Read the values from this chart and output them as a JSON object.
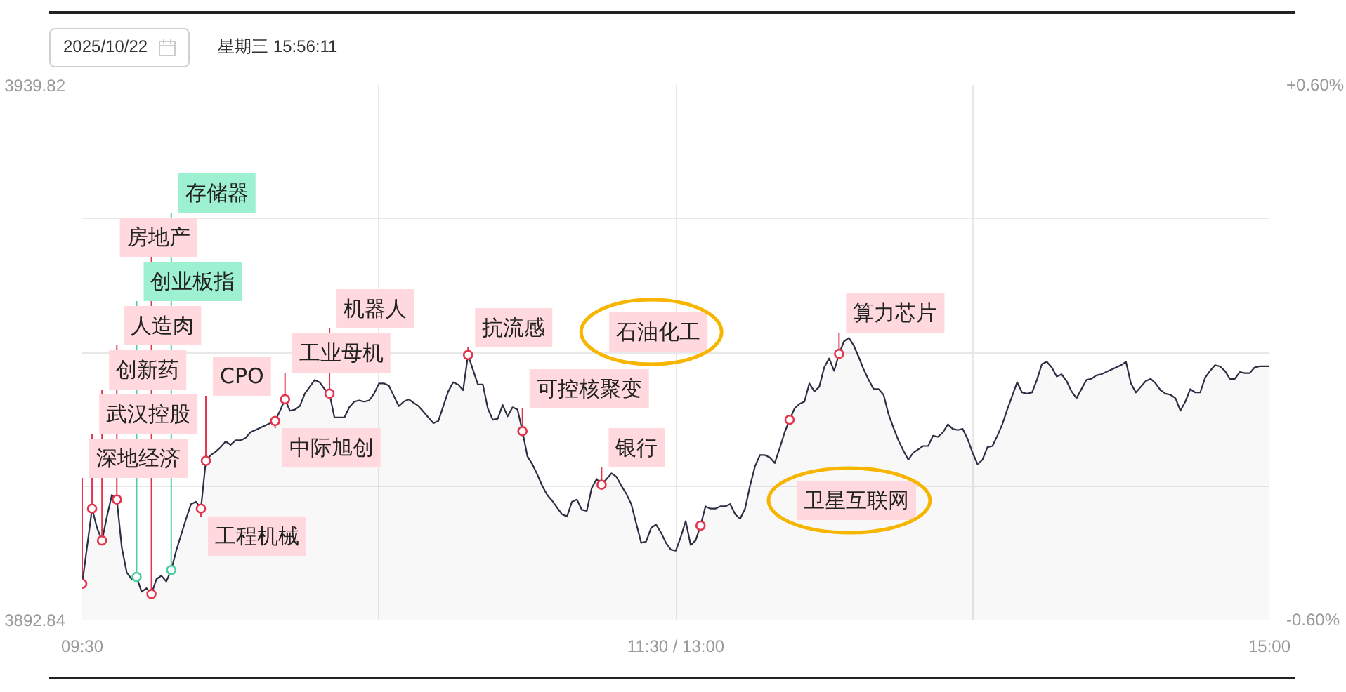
{
  "chart_data": {
    "type": "area",
    "title": "2025/10/22",
    "subtitle": "星期三 15:56:11",
    "categories": [
      "09:30",
      null,
      null,
      null,
      null,
      null,
      null,
      null,
      null,
      null,
      null,
      null,
      null,
      null,
      null,
      null,
      null,
      null,
      null,
      null,
      null,
      null,
      null,
      null,
      null,
      null,
      null,
      null,
      null,
      null,
      null,
      null,
      null,
      null,
      null,
      null,
      null,
      null,
      null,
      null,
      null,
      null,
      null,
      null,
      null,
      null,
      null,
      null,
      null,
      null,
      null,
      null,
      null,
      null,
      null,
      null,
      null,
      null,
      null,
      null,
      null,
      null,
      null,
      null,
      null,
      null,
      null,
      null,
      null,
      null,
      null,
      null,
      null,
      null,
      null,
      null,
      null,
      null,
      null,
      null,
      null,
      null,
      null,
      null,
      null,
      null,
      null,
      null,
      null,
      null,
      null,
      null,
      null,
      null,
      null,
      null,
      null,
      null,
      null,
      null,
      null,
      null,
      null,
      null,
      null,
      null,
      null,
      null,
      null,
      null,
      null,
      null,
      null,
      null,
      null,
      null,
      null,
      null,
      null,
      null,
      "11:30 / 13:00",
      null,
      null,
      null,
      null,
      null,
      null,
      null,
      null,
      null,
      null,
      null,
      null,
      null,
      null,
      null,
      null,
      null,
      null,
      null,
      null,
      null,
      null,
      null,
      null,
      null,
      null,
      null,
      null,
      null,
      null,
      null,
      null,
      null,
      null,
      null,
      null,
      null,
      null,
      null,
      null,
      null,
      null,
      null,
      null,
      null,
      null,
      null,
      null,
      null,
      null,
      null,
      null,
      null,
      null,
      null,
      null,
      null,
      null,
      null,
      null,
      null,
      null,
      null,
      null,
      null,
      null,
      null,
      null,
      null,
      null,
      null,
      null,
      null,
      null,
      null,
      null,
      null,
      null,
      null,
      null,
      null,
      null,
      null,
      null,
      null,
      null,
      null,
      null,
      null,
      null,
      null,
      null,
      null,
      null,
      null,
      null,
      null,
      null,
      null,
      null,
      null,
      null,
      null,
      null,
      null,
      null,
      null,
      null,
      null,
      null,
      null,
      null,
      null,
      null,
      null,
      null,
      null,
      null,
      null,
      "15:00"
    ],
    "ylim": [
      3892.84,
      3939.82
    ],
    "yticks": [
      3892.84,
      {
        "value": 3904.585,
        "label": null
      },
      {
        "value": 3916.33,
        "label": null
      },
      {
        "value": 3928.075,
        "label": null
      },
      3939.82
    ],
    "y2lim": [
      -0.6,
      0.6
    ],
    "y2ticks": [
      {
        "value": -0.6,
        "label": "-0.60%"
      },
      {
        "value": 0.6,
        "label": "+0.60%"
      }
    ],
    "grid": true,
    "series": [
      {
        "color": "#2c2f43",
        "values": [
          3896.0,
          3899.3,
          3902.6,
          3900.9,
          3899.8,
          3901.9,
          3903.8,
          3903.4,
          3899.2,
          3897.0,
          3896.4,
          3896.6,
          3895.3,
          3895.6,
          3895.1,
          3896.4,
          3896.7,
          3896.2,
          3897.2,
          3898.9,
          3900.3,
          3901.7,
          3903.0,
          3903.2,
          3902.6,
          3906.8,
          3907.3,
          3907.6,
          3908.0,
          3908.5,
          3908.2,
          3908.6,
          3908.6,
          3908.8,
          3909.3,
          3909.5,
          3909.7,
          3909.9,
          3910.1,
          3910.3,
          3911.2,
          3912.2,
          3911.2,
          3911.3,
          3911.6,
          3912.7,
          3913.3,
          3913.9,
          3913.7,
          3913.1,
          3912.7,
          3910.6,
          3910.6,
          3910.6,
          3911.5,
          3912.0,
          3912.1,
          3912.0,
          3912.1,
          3912.7,
          3913.6,
          3913.6,
          3913.4,
          3912.5,
          3911.6,
          3912.0,
          3912.2,
          3911.9,
          3911.6,
          3911.1,
          3910.6,
          3910.1,
          3910.3,
          3911.6,
          3912.9,
          3913.7,
          3913.5,
          3913.0,
          3916.1,
          3914.8,
          3913.5,
          3913.5,
          3911.4,
          3910.4,
          3910.5,
          3911.7,
          3910.7,
          3911.5,
          3911.3,
          3909.4,
          3907.2,
          3906.5,
          3905.6,
          3904.6,
          3903.8,
          3903.3,
          3902.7,
          3902.1,
          3901.9,
          3903.2,
          3903.4,
          3902.5,
          3902.4,
          3904.4,
          3905.2,
          3904.7,
          3905.2,
          3905.7,
          3905.4,
          3904.6,
          3903.9,
          3903.0,
          3901.3,
          3899.6,
          3899.7,
          3900.9,
          3901.2,
          3900.5,
          3899.6,
          3899.0,
          3898.9,
          3900.1,
          3901.5,
          3899.4,
          3899.8,
          3901.1,
          3902.8,
          3902.6,
          3902.6,
          3902.8,
          3902.8,
          3903.0,
          3902.1,
          3901.7,
          3902.6,
          3904.6,
          3906.3,
          3907.3,
          3907.3,
          3907.1,
          3906.6,
          3907.9,
          3909.3,
          3910.4,
          3911.4,
          3911.8,
          3912.0,
          3913.6,
          3912.9,
          3913.3,
          3915.0,
          3915.8,
          3914.7,
          3916.2,
          3917.3,
          3917.6,
          3916.9,
          3915.9,
          3914.8,
          3913.9,
          3913.1,
          3913.1,
          3912.6,
          3910.9,
          3909.7,
          3908.6,
          3907.7,
          3906.9,
          3907.5,
          3907.8,
          3908.1,
          3908.1,
          3909.0,
          3908.9,
          3909.3,
          3910.0,
          3909.6,
          3909.5,
          3909.6,
          3908.7,
          3907.5,
          3906.5,
          3906.9,
          3908.0,
          3908.1,
          3909.0,
          3910.0,
          3911.3,
          3912.5,
          3913.7,
          3912.8,
          3912.7,
          3912.8,
          3913.9,
          3915.3,
          3915.5,
          3915.0,
          3914.2,
          3914.4,
          3913.8,
          3912.9,
          3912.3,
          3913.1,
          3913.9,
          3914.0,
          3914.3,
          3914.4,
          3914.6,
          3914.8,
          3915.0,
          3915.2,
          3915.5,
          3913.6,
          3912.8,
          3913.3,
          3913.8,
          3914.0,
          3913.6,
          3913.0,
          3912.7,
          3912.6,
          3912.3,
          3911.2,
          3912.0,
          3913.1,
          3912.8,
          3912.8,
          3914.1,
          3914.7,
          3915.2,
          3915.1,
          3914.7,
          3914.0,
          3914.0,
          3914.6,
          3914.5,
          3914.5,
          3915.0,
          3915.1,
          3915.1,
          3915.1
        ]
      },
      {
        "type": "scatter",
        "marker": "circle",
        "color": "#e5334b",
        "values": [
          3896.0,
          null,
          3902.6,
          null,
          3899.8,
          null,
          null,
          3903.4,
          null,
          null,
          null,
          null,
          null,
          null,
          3895.1,
          null,
          null,
          null,
          null,
          null,
          null,
          null,
          null,
          null,
          3902.6,
          3906.8,
          null,
          null,
          null,
          null,
          null,
          null,
          null,
          null,
          null,
          null,
          null,
          null,
          null,
          3910.3,
          null,
          3912.2,
          null,
          null,
          null,
          null,
          null,
          null,
          null,
          null,
          3912.7,
          null,
          null,
          null,
          null,
          null,
          null,
          null,
          null,
          null,
          null,
          null,
          null,
          null,
          null,
          null,
          null,
          null,
          null,
          null,
          null,
          null,
          null,
          null,
          null,
          null,
          null,
          null,
          3916.1,
          null,
          null,
          null,
          null,
          null,
          null,
          null,
          null,
          null,
          null,
          3909.4,
          null,
          null,
          null,
          null,
          null,
          null,
          null,
          null,
          null,
          null,
          null,
          null,
          null,
          null,
          null,
          3904.7,
          null,
          null,
          null,
          null,
          null,
          null,
          null,
          null,
          null,
          null,
          null,
          null,
          null,
          null,
          null,
          null,
          null,
          null,
          null,
          3901.1,
          null,
          null,
          null,
          null,
          null,
          null,
          null,
          null,
          null,
          null,
          null,
          null,
          null,
          null,
          null,
          null,
          null,
          3910.4,
          null,
          null,
          null,
          null,
          null,
          null,
          null,
          null,
          null,
          3916.2,
          null,
          null,
          null,
          null,
          null,
          null,
          null,
          null,
          null,
          null,
          null,
          null,
          null,
          null,
          null,
          null,
          null,
          null,
          null,
          null,
          null,
          null,
          null,
          null,
          null,
          null,
          null,
          null,
          null,
          null,
          null,
          null,
          null,
          null,
          null,
          null,
          null,
          null,
          null,
          null,
          null,
          null,
          null,
          null,
          null,
          null,
          null,
          null,
          null,
          null,
          null,
          null,
          null,
          null,
          null,
          null,
          null,
          null,
          null,
          null,
          null,
          null,
          null,
          null,
          null,
          null,
          null,
          null,
          null,
          null,
          null,
          null,
          null,
          null,
          null,
          null,
          null,
          null,
          null,
          null,
          null,
          null,
          null,
          null,
          null,
          null,
          null
        ],
        "value_labels": [
          "深地经济",
          null,
          "武汉控股",
          null,
          "创新药",
          null,
          null,
          "人造肉",
          null,
          null,
          null,
          null,
          null,
          null,
          "房地产",
          null,
          null,
          null,
          null,
          null,
          null,
          null,
          null,
          null,
          "工程机械",
          "CPO",
          null,
          null,
          null,
          null,
          null,
          null,
          null,
          null,
          null,
          null,
          null,
          null,
          null,
          "中际旭创",
          null,
          "工业母机",
          null,
          null,
          null,
          null,
          null,
          null,
          null,
          null,
          "机器人",
          null,
          null,
          null,
          null,
          null,
          null,
          null,
          null,
          null,
          null,
          null,
          null,
          null,
          null,
          null,
          null,
          null,
          null,
          null,
          null,
          null,
          null,
          null,
          null,
          null,
          null,
          null,
          "抗流感",
          null,
          null,
          null,
          null,
          null,
          null,
          null,
          null,
          null,
          null,
          "可控核聚变",
          null,
          null,
          null,
          null,
          null,
          null,
          null,
          null,
          null,
          null,
          null,
          null,
          null,
          null,
          null,
          "银行",
          null,
          null,
          null,
          null,
          null,
          null,
          null,
          null,
          null,
          null,
          null,
          null,
          null,
          null,
          null,
          null,
          null,
          null,
          null,
          null,
          null,
          null,
          null,
          null,
          null,
          null,
          null,
          null,
          null,
          null,
          null,
          null,
          null,
          null,
          null,
          null,
          null,
          null,
          null,
          null,
          null,
          null,
          null,
          null,
          null,
          null,
          null,
          "算力芯片",
          null,
          null,
          null,
          null,
          null,
          null,
          null,
          null,
          null,
          null,
          null,
          null,
          null,
          null,
          null,
          null,
          null,
          null,
          null,
          null,
          null,
          null,
          null,
          null,
          null,
          null,
          null,
          null,
          null,
          null,
          null,
          null,
          null,
          null,
          null,
          null,
          null,
          null,
          null,
          null,
          null,
          null,
          null,
          null,
          null,
          null,
          null,
          null,
          null,
          null,
          null,
          null,
          null,
          null,
          null,
          null,
          null,
          null,
          null,
          null,
          null,
          null,
          null,
          null,
          null,
          null,
          null,
          null,
          null,
          null,
          null,
          null,
          null,
          null,
          null,
          null,
          null,
          null,
          null,
          null,
          null,
          null,
          null,
          null,
          null,
          null,
          null
        ]
      },
      {
        "type": "scatter",
        "marker": "circle",
        "color": "#4ccf9e",
        "values": [
          null,
          null,
          null,
          null,
          null,
          null,
          null,
          null,
          null,
          null,
          null,
          3896.6,
          null,
          null,
          null,
          null,
          null,
          null,
          3897.2,
          null,
          null,
          null,
          null,
          null,
          null,
          null,
          null,
          null,
          null,
          null,
          null,
          null,
          null,
          null,
          null,
          null,
          null,
          null,
          null,
          null,
          null,
          null,
          null,
          null,
          null,
          null,
          null,
          null,
          null,
          null,
          null,
          null,
          null,
          null,
          null,
          null,
          null,
          null,
          null,
          null,
          null,
          null,
          null,
          null,
          null,
          null,
          null,
          null,
          null,
          null,
          null,
          null,
          null,
          null,
          null,
          null,
          null,
          null,
          null,
          null,
          null,
          null,
          null,
          null,
          null,
          null,
          null,
          null,
          null,
          null,
          null,
          null,
          null,
          null,
          null,
          null,
          null,
          null,
          null,
          null,
          null,
          null,
          null,
          null,
          null,
          null,
          null,
          null,
          null,
          null,
          null,
          null,
          null,
          null,
          null,
          null,
          null,
          null,
          null,
          null,
          null,
          null,
          null,
          null,
          null,
          null,
          null,
          null,
          null,
          null,
          null,
          null,
          null,
          null,
          null,
          null,
          null,
          null,
          null,
          null,
          null,
          null,
          null,
          null,
          null,
          null,
          null,
          null,
          null,
          null,
          null,
          null,
          null,
          null,
          null,
          null,
          null,
          null,
          null,
          null,
          null,
          null,
          null,
          null,
          null,
          null,
          null,
          null,
          null,
          null,
          null,
          null,
          null,
          null,
          null,
          null,
          null,
          null,
          null,
          null,
          null,
          null,
          null,
          null,
          null,
          null,
          null,
          null,
          null,
          null,
          null,
          null,
          null,
          null,
          null,
          null,
          null,
          null,
          null,
          null,
          null,
          null,
          null,
          null,
          null,
          null,
          null,
          null,
          null,
          null,
          null,
          null,
          null,
          null,
          null,
          null,
          null,
          null,
          null,
          null,
          null,
          null,
          null,
          null,
          null,
          null,
          null,
          null,
          null,
          null,
          null,
          null,
          null,
          null,
          null,
          null,
          null,
          null,
          null,
          null,
          null
        ],
        "value_labels": [
          null,
          null,
          null,
          null,
          null,
          null,
          null,
          null,
          null,
          null,
          null,
          "创业板指",
          null,
          null,
          null,
          null,
          null,
          null,
          "存储器",
          null,
          null,
          null,
          null,
          null,
          null,
          null,
          null,
          null,
          null,
          null,
          null,
          null,
          null,
          null,
          null,
          null,
          null,
          null,
          null,
          null,
          null,
          null,
          null,
          null,
          null,
          null,
          null,
          null,
          null,
          null,
          null,
          null,
          null,
          null,
          null,
          null,
          null,
          null,
          null,
          null,
          null,
          null,
          null,
          null,
          null,
          null,
          null,
          null,
          null,
          null,
          null,
          null,
          null,
          null,
          null,
          null,
          null,
          null,
          null,
          null,
          null,
          null,
          null,
          null,
          null,
          null,
          null,
          null,
          null,
          null,
          null,
          null,
          null,
          null,
          null,
          null,
          null,
          null,
          null,
          null,
          null,
          null,
          null,
          null,
          null,
          null,
          null,
          null,
          null,
          null,
          null,
          null,
          null,
          null,
          null,
          null,
          null,
          null,
          null,
          null,
          null,
          null,
          null,
          null,
          null,
          null,
          null,
          null,
          null,
          null,
          null,
          null,
          null,
          null,
          null,
          null,
          null,
          null,
          null,
          null,
          null,
          null,
          null,
          null,
          null,
          null,
          null,
          null,
          null,
          null,
          null,
          null,
          null,
          null,
          null,
          null,
          null,
          null,
          null,
          null,
          null,
          null,
          null,
          null,
          null,
          null,
          null,
          null,
          null,
          null,
          null,
          null,
          null,
          null,
          null,
          null,
          null,
          null,
          null,
          null,
          null,
          null,
          null,
          null,
          null,
          null,
          null,
          null,
          null,
          null,
          null,
          null,
          null,
          null,
          null,
          null,
          null,
          null,
          null,
          null,
          null,
          null,
          null,
          null,
          null,
          null,
          null,
          null,
          null,
          null,
          null,
          null,
          null,
          null,
          null,
          null,
          null,
          null,
          null,
          null,
          null,
          null,
          null,
          null,
          null,
          null,
          null,
          null,
          null,
          null,
          null,
          null,
          null,
          null,
          null,
          null,
          null,
          null,
          null,
          null,
          null
        ]
      }
    ],
    "annotations": [
      "石油化工",
      "卫星互联网"
    ]
  }
}
